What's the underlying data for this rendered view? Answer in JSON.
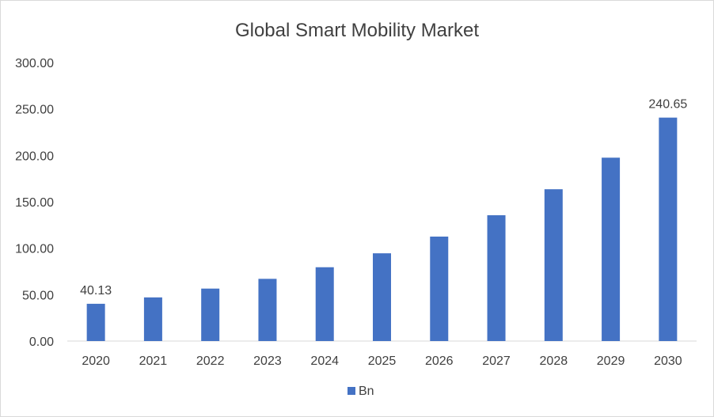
{
  "chart_data": {
    "type": "bar",
    "title": "Global Smart Mobility Market",
    "categories": [
      "2020",
      "2021",
      "2022",
      "2023",
      "2024",
      "2025",
      "2026",
      "2027",
      "2028",
      "2029",
      "2030"
    ],
    "series": [
      {
        "name": "Bn",
        "color": "#4472c4",
        "values": [
          40.13,
          47.0,
          56.5,
          67.0,
          79.5,
          94.5,
          112.5,
          135.5,
          163.5,
          197.5,
          240.65
        ]
      }
    ],
    "data_labels": [
      {
        "category": "2020",
        "text": "40.13"
      },
      {
        "category": "2030",
        "text": "240.65"
      }
    ],
    "y_ticks": [
      "0.00",
      "50.00",
      "100.00",
      "150.00",
      "200.00",
      "250.00",
      "300.00"
    ],
    "ylim": [
      0,
      300
    ],
    "xlabel": "",
    "ylabel": "",
    "grid": false,
    "legend_position": "bottom"
  }
}
